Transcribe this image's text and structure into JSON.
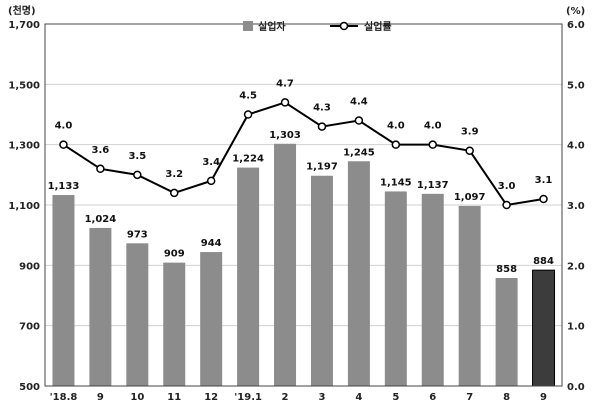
{
  "chart_data": {
    "type": "bar+line",
    "categories": [
      "'18.8",
      "9",
      "10",
      "11",
      "12",
      "'19.1",
      "2",
      "3",
      "4",
      "5",
      "6",
      "7",
      "8",
      "9"
    ],
    "series": [
      {
        "name": "실업자",
        "axis": "left",
        "type": "bar",
        "values": [
          1133,
          1024,
          973,
          909,
          944,
          1224,
          1303,
          1197,
          1245,
          1145,
          1137,
          1097,
          858,
          884
        ],
        "labels": [
          "1,133",
          "1,024",
          "973",
          "909",
          "944",
          "1,224",
          "1,303",
          "1,197",
          "1,245",
          "1,145",
          "1,137",
          "1,097",
          "858",
          "884"
        ],
        "highlight_last": true
      },
      {
        "name": "실업률",
        "axis": "right",
        "type": "line",
        "values": [
          4.0,
          3.6,
          3.5,
          3.2,
          3.4,
          4.5,
          4.7,
          4.3,
          4.4,
          4.0,
          4.0,
          3.9,
          3.0,
          3.1
        ],
        "labels": [
          "4.0",
          "3.6",
          "3.5",
          "3.2",
          "3.4",
          "4.5",
          "4.7",
          "4.3",
          "4.4",
          "4.0",
          "4.0",
          "3.9",
          "3.0",
          "3.1"
        ]
      }
    ],
    "y_left": {
      "unit": "(천명)",
      "ylim": [
        500,
        1700
      ],
      "ticks": [
        "500",
        "700",
        "900",
        "1,100",
        "1,300",
        "1,500",
        "1,700"
      ]
    },
    "y_right": {
      "unit": "(%)",
      "ylim": [
        0,
        6
      ],
      "ticks": [
        "0.0",
        "1.0",
        "2.0",
        "3.0",
        "4.0",
        "5.0",
        "6.0"
      ]
    },
    "grid": "horizontal",
    "legend_position": "top-center",
    "colors": {
      "bar": "#8c8c8c",
      "bar_highlight": "#3c3c3c",
      "line": "#000000",
      "grid": "#d0d0d0"
    }
  }
}
